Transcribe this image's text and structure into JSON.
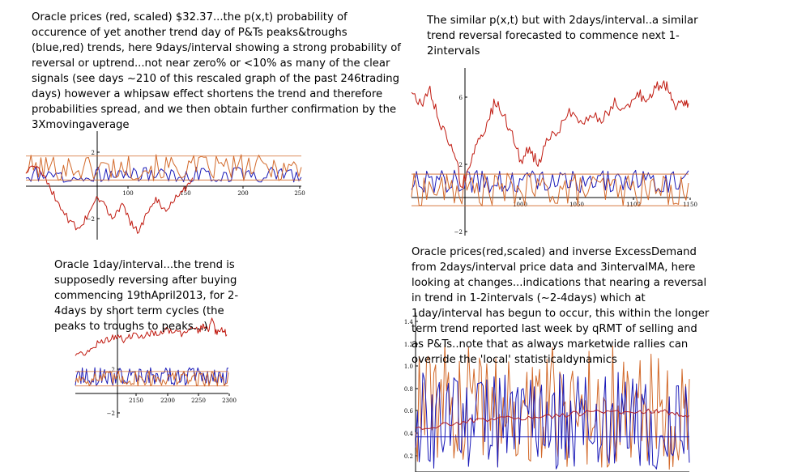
{
  "captions": {
    "panel1": "Oracle prices (red, scaled) $32.37...the p(x,t) probability of occurence of yet another trend day of P&Ts peaks&troughs (blue,red) trends, here 9days/interval showing a strong probability of reversal or uptrend...not near zero% or <10% as many of the clear signals (see days ~210 of this rescaled graph of the past 246trading days) however a whipsaw effect shortens the trend and therefore probabilities spread, and we then obtain further confirmation by the 3Xmovingaverage",
    "panel2": "The similar p(x,t) but with 2days/interval..a similar trend reversal forecasted to commence next 1-2intervals",
    "panel3": "Oracle 1day/interval...the trend is supposedly reversing after buying commencing 19thApril2013, for 2-4days by short term cycles (the peaks to troughs to peaks...)",
    "panel4": "Oracle prices(red,scaled) and inverse ExcessDemand from 2days/interval price data and 3intervalMA, here looking at changes...indications that nearing a reversal in trend in 1-2intervals (~2-4days) which at 1day/interval has begun to occur, this within the longer term trend reported last week by qRMT of selling and as P&Ts..note that as always marketwide rallies can override the 'local' statisticaldynamics"
  },
  "colors": {
    "price": "#c0190f",
    "blue": "#1a1ab8",
    "orange": "#d2692a",
    "ma": "#b0202a",
    "axis": "#000000"
  },
  "chart_data": [
    {
      "id": "chart1",
      "type": "line",
      "x_ticks": [
        "100",
        "150",
        "200",
        "250"
      ],
      "y_ticks": [
        "2",
        "-2"
      ],
      "xlim": [
        60,
        255
      ],
      "ylim": [
        -3.2,
        3.2
      ],
      "series_order": [
        "blue",
        "orange",
        "price"
      ],
      "orange_band": [
        0.3,
        2.0
      ],
      "blue_band": [
        0.2,
        1.2
      ],
      "price": [
        [
          60,
          0.8
        ],
        [
          68,
          1.4
        ],
        [
          75,
          0.2
        ],
        [
          82,
          -1.0
        ],
        [
          90,
          -2.2
        ],
        [
          98,
          -2.9
        ],
        [
          104,
          -1.8
        ],
        [
          110,
          -0.6
        ],
        [
          116,
          -1.4
        ],
        [
          122,
          -2.1
        ],
        [
          128,
          -1.2
        ],
        [
          134,
          -2.4
        ],
        [
          140,
          -3.0
        ],
        [
          146,
          -1.8
        ],
        [
          152,
          -0.8
        ],
        [
          158,
          -1.6
        ],
        [
          165,
          -0.9
        ],
        [
          172,
          -0.3
        ],
        [
          178,
          0.5
        ]
      ]
    },
    {
      "id": "chart2",
      "type": "line",
      "x_ticks": [
        "1000",
        "1050",
        "1100",
        "1150"
      ],
      "y_ticks": [
        "6",
        "2",
        "-2"
      ],
      "xlim": [
        955,
        1150
      ],
      "ylim": [
        -2.4,
        8.0
      ],
      "series_order": [
        "blue",
        "orange",
        "price"
      ],
      "orange_band": [
        -0.8,
        1.4
      ],
      "blue_band": [
        0.1,
        1.6
      ],
      "price": [
        [
          955,
          6.7
        ],
        [
          962,
          5.8
        ],
        [
          968,
          6.8
        ],
        [
          974,
          5.0
        ],
        [
          980,
          3.6
        ],
        [
          986,
          2.4
        ],
        [
          990,
          0.6
        ],
        [
          996,
          1.8
        ],
        [
          1002,
          3.5
        ],
        [
          1008,
          4.5
        ],
        [
          1014,
          6.2
        ],
        [
          1020,
          5.2
        ],
        [
          1026,
          3.8
        ],
        [
          1032,
          2.2
        ],
        [
          1038,
          3.0
        ],
        [
          1044,
          2.0
        ],
        [
          1050,
          3.4
        ],
        [
          1058,
          4.2
        ],
        [
          1066,
          5.4
        ],
        [
          1074,
          4.6
        ],
        [
          1082,
          5.2
        ],
        [
          1090,
          5.0
        ],
        [
          1098,
          6.0
        ],
        [
          1106,
          5.6
        ],
        [
          1114,
          6.8
        ],
        [
          1120,
          6.0
        ],
        [
          1126,
          7.0
        ],
        [
          1132,
          7.4
        ],
        [
          1136,
          7.0
        ],
        [
          1140,
          5.8
        ],
        [
          1146,
          6.2
        ],
        [
          1150,
          6.0
        ]
      ]
    },
    {
      "id": "chart3",
      "type": "line",
      "x_ticks": [
        "2150",
        "2200",
        "2250",
        "2300"
      ],
      "y_ticks": [
        "2",
        "-2"
      ],
      "xlim": [
        2115,
        2300
      ],
      "ylim": [
        -2.4,
        6.8
      ],
      "series_order": [
        "blue",
        "orange",
        "price"
      ],
      "orange_band": [
        0.1,
        1.6
      ],
      "blue_band": [
        0.2,
        1.9
      ],
      "price": [
        [
          2115,
          3.0
        ],
        [
          2125,
          3.2
        ],
        [
          2135,
          3.6
        ],
        [
          2145,
          4.4
        ],
        [
          2155,
          4.6
        ],
        [
          2165,
          4.9
        ],
        [
          2175,
          4.5
        ],
        [
          2185,
          5.0
        ],
        [
          2195,
          4.9
        ],
        [
          2205,
          5.1
        ],
        [
          2215,
          5.0
        ],
        [
          2225,
          5.4
        ],
        [
          2235,
          5.2
        ],
        [
          2245,
          5.0
        ],
        [
          2255,
          5.6
        ],
        [
          2265,
          5.4
        ],
        [
          2270,
          5.9
        ],
        [
          2275,
          5.4
        ],
        [
          2280,
          6.4
        ],
        [
          2285,
          5.2
        ],
        [
          2292,
          5.6
        ],
        [
          2298,
          5.0
        ]
      ]
    },
    {
      "id": "chart4",
      "type": "line",
      "y_ticks": [
        "1.4",
        "1.2",
        "1.0",
        "0.8",
        "0.6",
        "0.4",
        "0.2"
      ],
      "xlim": [
        0,
        100
      ],
      "ylim": [
        0.1,
        1.42
      ],
      "series_order": [
        "orange",
        "blue",
        "ma"
      ],
      "orange_band": [
        0.12,
        1.2
      ],
      "blue_band": [
        0.12,
        0.95
      ],
      "ma": [
        [
          0,
          0.47
        ],
        [
          10,
          0.5
        ],
        [
          20,
          0.54
        ],
        [
          30,
          0.55
        ],
        [
          40,
          0.57
        ],
        [
          50,
          0.58
        ],
        [
          60,
          0.6
        ],
        [
          70,
          0.61
        ],
        [
          80,
          0.6
        ],
        [
          88,
          0.63
        ],
        [
          94,
          0.6
        ],
        [
          100,
          0.58
        ]
      ]
    }
  ]
}
